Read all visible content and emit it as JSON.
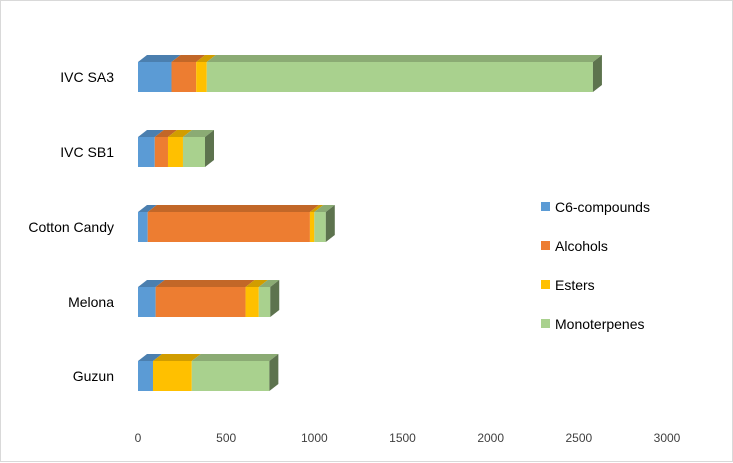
{
  "chart_data": {
    "type": "bar",
    "orientation": "horizontal",
    "stacked": true,
    "style": "3d",
    "categories": [
      "IVC SA3",
      "IVC SB1",
      "Cotton Candy",
      "Melona",
      "Guzun"
    ],
    "series": [
      {
        "name": "C6-compounds",
        "color": "#5B9BD5",
        "values": [
          190,
          95,
          55,
          100,
          85
        ]
      },
      {
        "name": "Alcohols",
        "color": "#ED7D31",
        "values": [
          140,
          75,
          920,
          510,
          0
        ]
      },
      {
        "name": "Esters",
        "color": "#FFC000",
        "values": [
          60,
          85,
          25,
          75,
          220
        ]
      },
      {
        "name": "Monoterpenes",
        "color": "#A9D18E",
        "values": [
          2190,
          125,
          65,
          65,
          440
        ]
      }
    ],
    "xlim": [
      0,
      3000
    ],
    "xticks": [
      "0",
      "500",
      "1000",
      "1500",
      "2000",
      "2500",
      "3000"
    ],
    "xtick_values": [
      0,
      500,
      1000,
      1500,
      2000,
      2500,
      3000
    ],
    "legend_position": "right",
    "grid": false
  }
}
